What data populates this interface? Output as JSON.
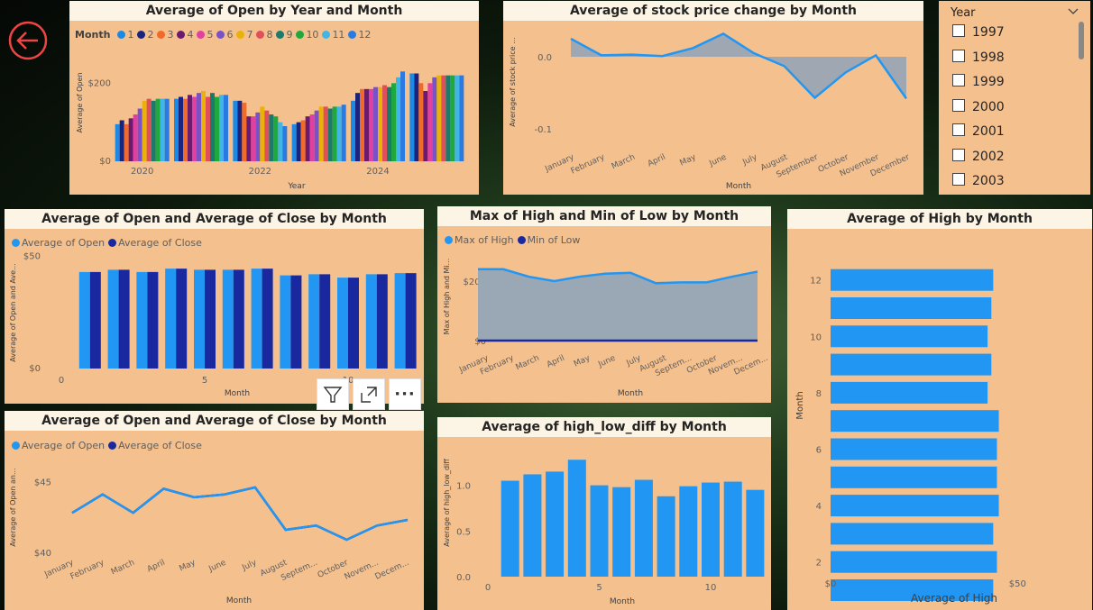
{
  "colors": {
    "panel": "#f4c08e",
    "title_bar": "#fcf5e6",
    "blue": "#2196f3",
    "navy": "#1a28a0",
    "area": "#9aa7b4",
    "line": "#2196f3",
    "back": "#ef4444"
  },
  "back_button": {
    "icon": "arrow-left-icon"
  },
  "visual_toolbar": {
    "icons": [
      "filter-icon",
      "focus-mode-icon",
      "more-options-icon"
    ],
    "more_label": "···"
  },
  "charts": [
    {
      "id": "open_by_year_month",
      "title": "Average of Open by Year and Month",
      "legend_title": "Month",
      "type": "bar",
      "xlabel": "Year",
      "ylabel": "Average of Open",
      "x_ticks": [
        "2020",
        "2022",
        "2024"
      ],
      "y_ticks": [
        "$0",
        "$200"
      ],
      "ylim": [
        0,
        300
      ],
      "categories": [
        "2020",
        "2021",
        "2022",
        "2023",
        "2024",
        "2025"
      ],
      "series": [
        {
          "name": "1",
          "color": "#1e88e5",
          "values": [
            95,
            160,
            155,
            95,
            155,
            225
          ]
        },
        {
          "name": "2",
          "color": "#1a237e",
          "values": [
            105,
            165,
            155,
            100,
            175,
            225
          ]
        },
        {
          "name": "3",
          "color": "#f06a2c",
          "values": [
            95,
            160,
            150,
            105,
            185,
            200
          ]
        },
        {
          "name": "4",
          "color": "#6b1a6e",
          "values": [
            110,
            170,
            115,
            115,
            185,
            180
          ]
        },
        {
          "name": "5",
          "color": "#e040a0",
          "values": [
            120,
            165,
            115,
            120,
            185,
            200
          ]
        },
        {
          "name": "6",
          "color": "#7a52c7",
          "values": [
            135,
            175,
            125,
            130,
            190,
            215
          ]
        },
        {
          "name": "7",
          "color": "#e8b20a",
          "values": [
            155,
            180,
            140,
            140,
            190,
            220
          ]
        },
        {
          "name": "8",
          "color": "#e0505a",
          "values": [
            160,
            165,
            130,
            140,
            195,
            220
          ]
        },
        {
          "name": "9",
          "color": "#1b7a6a",
          "values": [
            155,
            175,
            120,
            135,
            190,
            220
          ]
        },
        {
          "name": "10",
          "color": "#1fa83e",
          "values": [
            160,
            165,
            115,
            140,
            200,
            220
          ]
        },
        {
          "name": "11",
          "color": "#41b6e6",
          "values": [
            160,
            170,
            100,
            140,
            215,
            220
          ]
        },
        {
          "name": "12",
          "color": "#2a7ae2",
          "values": [
            160,
            170,
            90,
            145,
            230,
            220
          ]
        }
      ]
    },
    {
      "id": "stock_change_by_month",
      "title": "Average of stock price change by Month",
      "type": "area",
      "xlabel": "Month",
      "ylabel": "Average of stock price ...",
      "y_ticks": [
        "0.0",
        "-0.1"
      ],
      "ylim": [
        -0.11,
        0.04
      ],
      "categories": [
        "January",
        "February",
        "March",
        "April",
        "May",
        "June",
        "July",
        "August",
        "September",
        "October",
        "November",
        "December"
      ],
      "values": [
        0.025,
        0.002,
        0.003,
        0.001,
        0.012,
        0.032,
        0.005,
        -0.013,
        -0.057,
        -0.022,
        0.002,
        -0.058
      ]
    },
    {
      "id": "open_close_bar",
      "title": "Average of Open and Average of Close by Month",
      "type": "bar",
      "xlabel": "Month",
      "ylabel": "Average of Open and Ave...",
      "x_ticks": [
        "0",
        "5",
        "10"
      ],
      "y_ticks": [
        "$0",
        "$50"
      ],
      "ylim": [
        0,
        55
      ],
      "categories": [
        1,
        2,
        3,
        4,
        5,
        6,
        7,
        8,
        9,
        10,
        11,
        12
      ],
      "series": [
        {
          "name": "Average of Open",
          "color": "#2196f3",
          "values": [
            43,
            44,
            43,
            44.5,
            44,
            44,
            44.5,
            41.5,
            42,
            40.5,
            42,
            42.5
          ]
        },
        {
          "name": "Average of Close",
          "color": "#1a28a0",
          "values": [
            43,
            44,
            43,
            44.5,
            44,
            44,
            44.5,
            41.5,
            42,
            40.5,
            42,
            42.5
          ]
        }
      ]
    },
    {
      "id": "high_low_area",
      "title": "Max of High and Min of Low by Month",
      "type": "area",
      "xlabel": "Month",
      "ylabel": "Max of High and Mi...",
      "y_ticks": [
        "$0",
        "$200"
      ],
      "ylim": [
        0,
        300
      ],
      "categories": [
        "January",
        "February",
        "March",
        "April",
        "May",
        "June",
        "July",
        "August",
        "Septem...",
        "October",
        "Novem...",
        "Decem..."
      ],
      "series": [
        {
          "name": "Max of High",
          "color": "#2196f3",
          "values": [
            240,
            240,
            215,
            200,
            215,
            225,
            228,
            193,
            196,
            196,
            215,
            232
          ]
        },
        {
          "name": "Min of Low",
          "color": "#1a28a0",
          "values": [
            0,
            0,
            0,
            0,
            0,
            0,
            0,
            0,
            0,
            0,
            0,
            0
          ]
        }
      ]
    },
    {
      "id": "high_by_month",
      "title": "Average of High by Month",
      "type": "bar",
      "xlabel": "Average of High",
      "ylabel": "Month",
      "x_ticks": [
        "$0",
        "$50"
      ],
      "y_ticks": [
        "2",
        "4",
        "6",
        "8",
        "10",
        "12"
      ],
      "xlim": [
        0,
        55
      ],
      "categories": [
        1,
        2,
        3,
        4,
        5,
        6,
        7,
        8,
        9,
        10,
        11,
        12
      ],
      "values": [
        43.5,
        44.5,
        43.5,
        45,
        44.5,
        44.5,
        45,
        42,
        43,
        42,
        43,
        43.5
      ]
    },
    {
      "id": "open_close_line",
      "title": "Average of Open and Average of Close by Month",
      "type": "line",
      "xlabel": "Month",
      "ylabel": "Average of Open an...",
      "y_ticks": [
        "$40",
        "$45"
      ],
      "ylim": [
        39.5,
        46.5
      ],
      "categories": [
        "January",
        "February",
        "March",
        "April",
        "May",
        "June",
        "July",
        "August",
        "Septem...",
        "October",
        "Novem...",
        "Decem..."
      ],
      "series": [
        {
          "name": "Average of Open",
          "color": "#2196f3",
          "values": [
            42.8,
            44.1,
            42.8,
            44.5,
            43.9,
            44.1,
            44.6,
            41.6,
            41.9,
            40.9,
            41.9,
            42.3
          ]
        },
        {
          "name": "Average of Close",
          "color": "#1a28a0",
          "values": [
            42.8,
            44.1,
            42.8,
            44.5,
            43.9,
            44.1,
            44.6,
            41.6,
            41.9,
            40.9,
            41.9,
            42.3
          ]
        }
      ]
    },
    {
      "id": "high_low_diff",
      "title": "Average of high_low_diff by Month",
      "type": "bar",
      "xlabel": "Month",
      "ylabel": "Average of high_low_diff",
      "x_ticks": [
        "0",
        "5",
        "10"
      ],
      "y_ticks": [
        "0.0",
        "0.5",
        "1.0"
      ],
      "ylim": [
        0,
        1.45
      ],
      "categories": [
        1,
        2,
        3,
        4,
        5,
        6,
        7,
        8,
        9,
        10,
        11,
        12
      ],
      "values": [
        1.05,
        1.12,
        1.15,
        1.28,
        1.0,
        0.98,
        1.06,
        0.88,
        0.99,
        1.03,
        1.04,
        0.95
      ]
    }
  ],
  "slicer": {
    "title": "Year",
    "chevron_icon": "chevron-down-icon",
    "items": [
      "1997",
      "1998",
      "1999",
      "2000",
      "2001",
      "2002",
      "2003"
    ]
  }
}
